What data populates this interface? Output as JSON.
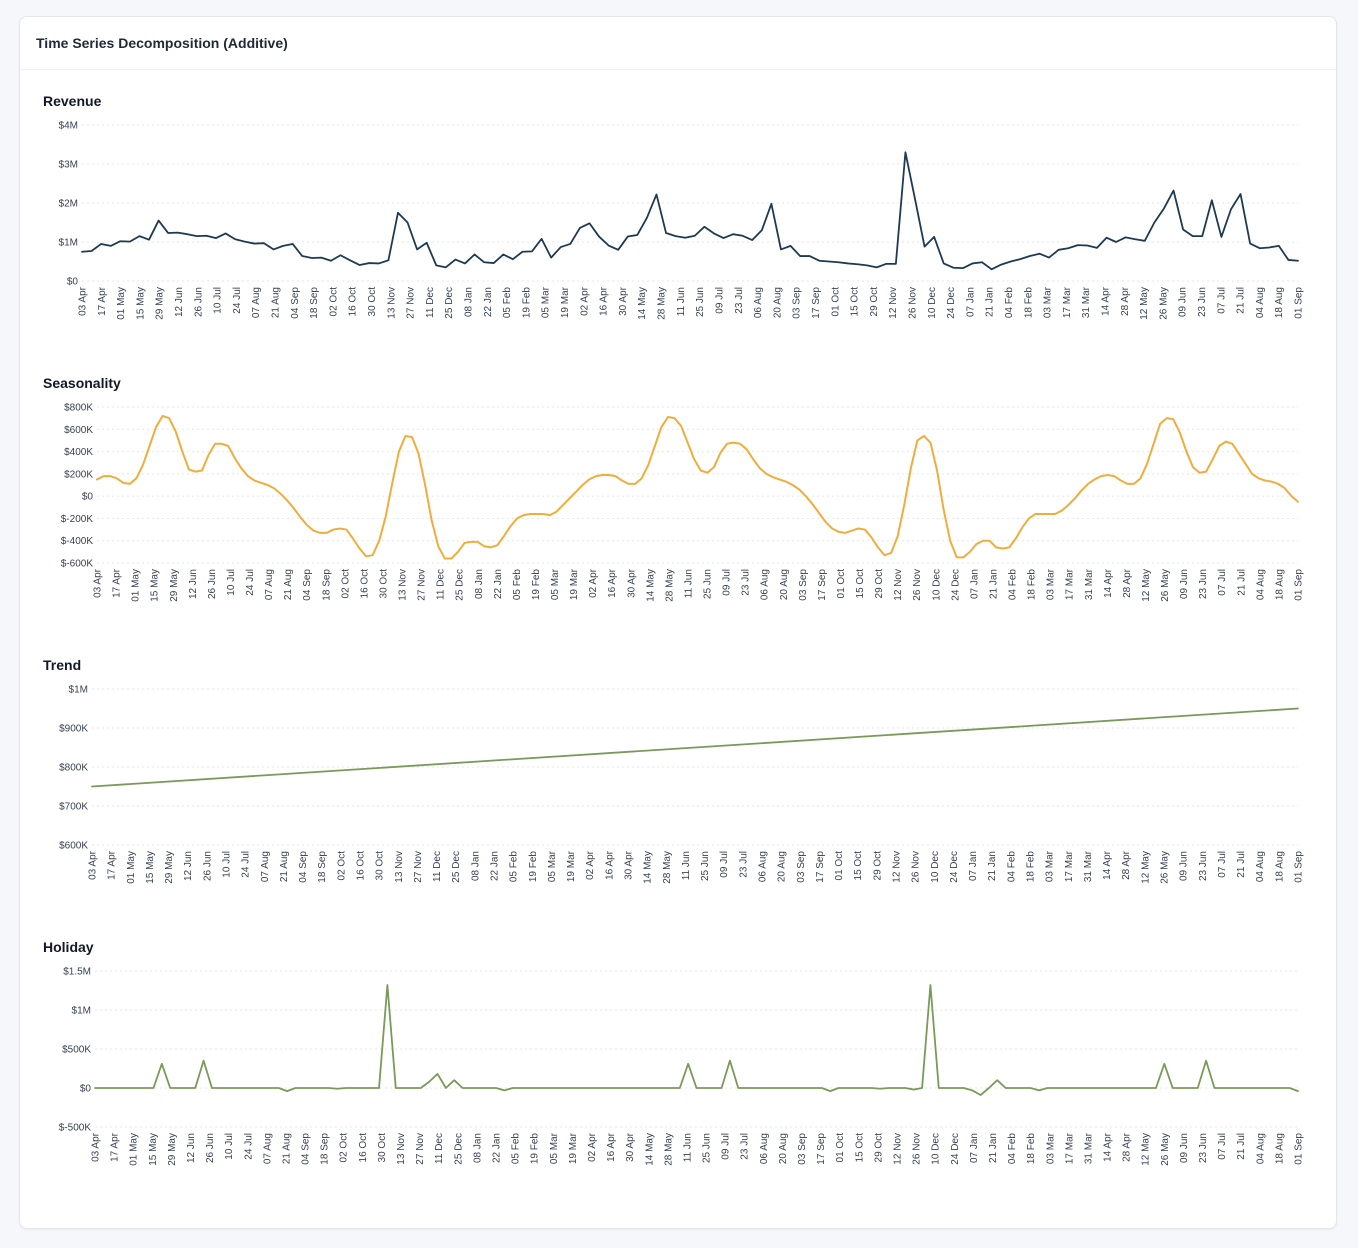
{
  "card": {
    "title": "Time Series Decomposition (Additive)"
  },
  "x_tick_labels": [
    "03 Apr",
    "17 Apr",
    "01 May",
    "15 May",
    "29 May",
    "12 Jun",
    "26 Jun",
    "10 Jul",
    "24 Jul",
    "07 Aug",
    "21 Aug",
    "04 Sep",
    "18 Sep",
    "02 Oct",
    "16 Oct",
    "30 Oct",
    "13 Nov",
    "27 Nov",
    "11 Dec",
    "25 Dec",
    "08 Jan",
    "22 Jan",
    "05 Feb",
    "19 Feb",
    "05 Mar",
    "19 Mar",
    "02 Apr",
    "16 Apr",
    "30 Apr",
    "14 May",
    "28 May",
    "11 Jun",
    "25 Jun",
    "09 Jul",
    "23 Jul",
    "06 Aug",
    "20 Aug",
    "03 Sep",
    "17 Sep",
    "01 Oct",
    "15 Oct",
    "29 Oct",
    "12 Nov",
    "26 Nov",
    "10 Dec",
    "24 Dec",
    "07 Jan",
    "21 Jan",
    "04 Feb",
    "18 Feb",
    "03 Mar",
    "17 Mar",
    "31 Mar",
    "14 Apr",
    "28 Apr",
    "12 May",
    "26 May",
    "09 Jun",
    "23 Jun",
    "07 Jul",
    "21 Jul",
    "04 Aug",
    "18 Aug",
    "01 Sep"
  ],
  "colors": {
    "revenue": "#1e3a52",
    "seasonality": "#f0ad3c",
    "trend": "#7a9a58",
    "holiday": "#7a9a58"
  },
  "chart_data": [
    {
      "type": "line",
      "title": "Revenue",
      "series": [
        {
          "values": [
            750000,
            770000,
            950000,
            900000,
            1020000,
            1010000,
            1150000,
            1060000,
            1550000,
            1230000,
            1240000,
            1200000,
            1150000,
            1160000,
            1100000,
            1220000,
            1070000,
            1010000,
            960000,
            970000,
            810000,
            900000,
            950000,
            640000,
            590000,
            600000,
            520000,
            660000,
            530000,
            410000,
            460000,
            450000,
            530000,
            1750000,
            1500000,
            810000,
            980000,
            400000,
            350000,
            550000,
            450000,
            680000,
            480000,
            460000,
            680000,
            560000,
            750000,
            760000,
            1080000,
            600000,
            870000,
            950000,
            1360000,
            1480000,
            1140000,
            910000,
            800000,
            1140000,
            1180000,
            1620000,
            2220000,
            1230000,
            1150000,
            1110000,
            1160000,
            1390000,
            1220000,
            1100000,
            1200000,
            1160000,
            1050000,
            1300000,
            1980000,
            810000,
            900000,
            640000,
            640000,
            520000,
            500000,
            480000,
            450000,
            430000,
            400000,
            350000,
            440000,
            440000,
            3300000,
            2100000,
            880000,
            1130000,
            450000,
            340000,
            330000,
            450000,
            480000,
            300000,
            420000,
            500000,
            560000,
            640000,
            700000,
            600000,
            800000,
            840000,
            920000,
            910000,
            850000,
            1110000,
            1000000,
            1120000,
            1070000,
            1030000,
            1500000,
            1860000,
            2320000,
            1320000,
            1150000,
            1150000,
            2070000,
            1130000,
            1840000,
            2230000,
            960000,
            840000,
            860000,
            900000,
            540000,
            520000
          ]
        }
      ],
      "ylim": [
        0,
        4000000
      ],
      "ytick_labels": [
        "$0",
        "$1M",
        "$2M",
        "$3M",
        "$4M"
      ],
      "grid": true
    },
    {
      "type": "line",
      "title": "Seasonality",
      "series": [
        {
          "values": [
            150000,
            180000,
            180000,
            160000,
            120000,
            110000,
            160000,
            280000,
            450000,
            620000,
            720000,
            700000,
            580000,
            400000,
            240000,
            220000,
            230000,
            370000,
            470000,
            470000,
            450000,
            340000,
            250000,
            180000,
            140000,
            120000,
            100000,
            70000,
            20000,
            -40000,
            -110000,
            -190000,
            -260000,
            -310000,
            -330000,
            -330000,
            -300000,
            -290000,
            -300000,
            -380000,
            -470000,
            -540000,
            -530000,
            -400000,
            -180000,
            120000,
            400000,
            540000,
            530000,
            380000,
            100000,
            -220000,
            -450000,
            -560000,
            -560000,
            -500000,
            -420000,
            -410000,
            -410000,
            -450000,
            -460000,
            -440000,
            -360000,
            -270000,
            -200000,
            -170000,
            -160000,
            -160000,
            -160000,
            -170000,
            -140000,
            -80000,
            -20000,
            40000,
            100000,
            150000,
            180000,
            190000,
            190000,
            180000,
            140000,
            110000,
            110000,
            160000,
            280000,
            450000,
            620000,
            710000,
            700000,
            630000,
            480000,
            330000,
            230000,
            210000,
            260000,
            390000,
            470000,
            480000,
            470000,
            420000,
            330000,
            250000,
            200000,
            170000,
            150000,
            130000,
            100000,
            60000,
            0,
            -70000,
            -150000,
            -230000,
            -290000,
            -320000,
            -330000,
            -310000,
            -290000,
            -300000,
            -370000,
            -460000,
            -530000,
            -510000,
            -360000,
            -80000,
            250000,
            500000,
            540000,
            480000,
            230000,
            -120000,
            -400000,
            -550000,
            -550000,
            -500000,
            -430000,
            -400000,
            -400000,
            -460000,
            -470000,
            -460000,
            -380000,
            -280000,
            -200000,
            -160000,
            -160000,
            -160000,
            -160000,
            -130000,
            -80000,
            -20000,
            50000,
            110000,
            150000,
            180000,
            190000,
            180000,
            140000,
            110000,
            110000,
            160000,
            290000,
            470000,
            650000,
            700000,
            690000,
            570000,
            400000,
            260000,
            210000,
            220000,
            330000,
            450000,
            490000,
            470000,
            380000,
            290000,
            200000,
            160000,
            140000,
            130000,
            110000,
            70000,
            0,
            -50000
          ]
        }
      ],
      "ylim": [
        -600000,
        800000
      ],
      "ytick_labels": [
        "$-600K",
        "$-400K",
        "$-200K",
        "$0",
        "$200K",
        "$400K",
        "$600K",
        "$800K"
      ],
      "grid": true
    },
    {
      "type": "line",
      "title": "Trend",
      "series": [
        {
          "values": [
            750000,
            950000
          ]
        }
      ],
      "ylim": [
        600000,
        1000000
      ],
      "ytick_labels": [
        "$600K",
        "$700K",
        "$800K",
        "$900K",
        "$1M"
      ],
      "grid": true
    },
    {
      "type": "line",
      "title": "Holiday",
      "series": [
        {
          "values": [
            0,
            0,
            0,
            0,
            0,
            0,
            0,
            0,
            310000,
            0,
            0,
            0,
            0,
            350000,
            0,
            0,
            0,
            0,
            0,
            0,
            0,
            0,
            0,
            -40000,
            0,
            0,
            0,
            0,
            0,
            -10000,
            0,
            0,
            0,
            0,
            0,
            1320000,
            0,
            0,
            0,
            0,
            80000,
            180000,
            0,
            100000,
            0,
            0,
            0,
            0,
            0,
            -30000,
            0,
            0,
            0,
            0,
            0,
            0,
            0,
            0,
            0,
            0,
            0,
            0,
            0,
            0,
            0,
            0,
            0,
            0,
            0,
            0,
            0,
            310000,
            0,
            0,
            0,
            0,
            350000,
            0,
            0,
            0,
            0,
            0,
            0,
            0,
            0,
            0,
            0,
            0,
            -40000,
            0,
            0,
            0,
            0,
            0,
            -10000,
            0,
            0,
            0,
            -20000,
            0,
            1320000,
            0,
            0,
            0,
            0,
            -30000,
            -90000,
            0,
            100000,
            0,
            0,
            0,
            0,
            -30000,
            0,
            0,
            0,
            0,
            0,
            0,
            0,
            0,
            0,
            0,
            0,
            0,
            0,
            0,
            310000,
            0,
            0,
            0,
            0,
            350000,
            0,
            0,
            0,
            0,
            0,
            0,
            0,
            0,
            0,
            0,
            -40000
          ]
        }
      ],
      "ylim": [
        -500000,
        1500000
      ],
      "ytick_labels": [
        "$-500K",
        "$0",
        "$500K",
        "$1M",
        "$1.5M"
      ],
      "grid": true
    }
  ]
}
